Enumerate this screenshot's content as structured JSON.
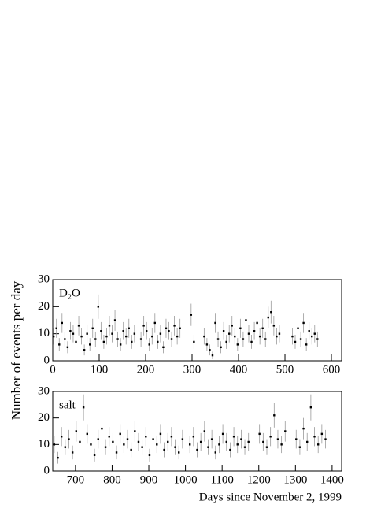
{
  "chart_data": [
    {
      "type": "scatter",
      "annotation": "D₂O",
      "ylabel": "Number of events per day",
      "xlim": [
        0,
        622
      ],
      "ylim": [
        0,
        30
      ],
      "xticks": [
        0,
        100,
        200,
        300,
        400,
        500,
        600
      ],
      "yticks": [
        0,
        10,
        20,
        30
      ],
      "color": "#000000",
      "error_color": "#999999",
      "x": [
        2,
        8,
        14,
        20,
        26,
        32,
        38,
        44,
        50,
        56,
        62,
        68,
        74,
        80,
        86,
        92,
        98,
        104,
        110,
        116,
        122,
        128,
        134,
        140,
        146,
        152,
        158,
        164,
        170,
        176,
        190,
        196,
        202,
        208,
        214,
        220,
        226,
        232,
        238,
        244,
        250,
        256,
        262,
        268,
        274,
        298,
        304,
        326,
        332,
        338,
        344,
        350,
        356,
        362,
        368,
        374,
        380,
        386,
        392,
        398,
        404,
        410,
        416,
        422,
        428,
        434,
        440,
        446,
        452,
        458,
        464,
        470,
        476,
        482,
        488,
        516,
        522,
        528,
        534,
        540,
        546,
        552,
        558,
        564,
        570
      ],
      "values": [
        9,
        12,
        6,
        14,
        8,
        5,
        11,
        10,
        7,
        13,
        9,
        4,
        10,
        6,
        12,
        8,
        20,
        11,
        7,
        9,
        13,
        10,
        15,
        8,
        6,
        11,
        9,
        12,
        7,
        10,
        8,
        13,
        11,
        6,
        9,
        14,
        7,
        10,
        5,
        12,
        11,
        8,
        13,
        9,
        12,
        17,
        7,
        9,
        6,
        4,
        2,
        14,
        8,
        5,
        11,
        7,
        10,
        13,
        9,
        6,
        12,
        8,
        15,
        10,
        7,
        11,
        14,
        9,
        12,
        8,
        16,
        18,
        13,
        9,
        10,
        9,
        7,
        12,
        8,
        14,
        6,
        11,
        9,
        10,
        8
      ],
      "errors": [
        3,
        3.5,
        2.4,
        3.7,
        2.8,
        2.2,
        3.3,
        3.2,
        2.6,
        3.6,
        3,
        2,
        3.2,
        2.4,
        3.5,
        2.8,
        4.5,
        3.3,
        2.6,
        3,
        3.6,
        3.2,
        3.9,
        2.8,
        2.4,
        3.3,
        3,
        3.5,
        2.6,
        3.2,
        2.8,
        3.6,
        3.3,
        2.4,
        3,
        3.7,
        2.6,
        3.2,
        2.2,
        3.5,
        3.3,
        2.8,
        3.6,
        3,
        3.5,
        4.1,
        2.6,
        3,
        2.4,
        2,
        1.4,
        3.7,
        2.8,
        2.2,
        3.3,
        2.6,
        3.2,
        3.6,
        3,
        2.4,
        3.5,
        2.8,
        3.9,
        3.2,
        2.6,
        3.3,
        3.7,
        3,
        3.5,
        2.8,
        4,
        4.2,
        3.6,
        3,
        3.2,
        3,
        2.6,
        3.5,
        2.8,
        3.7,
        2.4,
        3.3,
        3,
        3.2,
        2.8
      ]
    },
    {
      "type": "scatter",
      "annotation": "salt",
      "xlabel": "Days since November 2, 1999",
      "xlim": [
        638,
        1426
      ],
      "ylim": [
        0,
        30
      ],
      "xticks": [
        700,
        800,
        900,
        1000,
        1100,
        1200,
        1300,
        1400
      ],
      "yticks": [
        0,
        10,
        20,
        30
      ],
      "color": "#000000",
      "error_color": "#999999",
      "x": [
        642,
        652,
        662,
        672,
        682,
        692,
        702,
        712,
        722,
        732,
        742,
        752,
        762,
        772,
        782,
        792,
        802,
        812,
        822,
        832,
        842,
        852,
        862,
        872,
        882,
        892,
        902,
        912,
        922,
        932,
        942,
        952,
        962,
        972,
        982,
        992,
        1012,
        1022,
        1032,
        1042,
        1052,
        1062,
        1072,
        1082,
        1092,
        1102,
        1112,
        1122,
        1132,
        1142,
        1152,
        1162,
        1172,
        1202,
        1212,
        1222,
        1232,
        1242,
        1252,
        1262,
        1272,
        1302,
        1312,
        1322,
        1332,
        1342,
        1352,
        1362,
        1372,
        1382
      ],
      "values": [
        10,
        5,
        13,
        9,
        12,
        7,
        15,
        11,
        24,
        14,
        10,
        6,
        12,
        16,
        9,
        13,
        11,
        7,
        14,
        10,
        12,
        8,
        15,
        11,
        9,
        13,
        6,
        12,
        10,
        14,
        8,
        11,
        13,
        9,
        7,
        12,
        10,
        13,
        8,
        11,
        15,
        9,
        12,
        7,
        10,
        14,
        11,
        8,
        13,
        10,
        12,
        9,
        11,
        14,
        11,
        9,
        13,
        21,
        12,
        10,
        15,
        12,
        9,
        16,
        11,
        24,
        13,
        10,
        14,
        12
      ],
      "errors": [
        3.2,
        2.2,
        3.6,
        3,
        3.5,
        2.6,
        3.9,
        3.3,
        4.9,
        3.7,
        3.2,
        2.4,
        3.5,
        4,
        3,
        3.6,
        3.3,
        2.6,
        3.7,
        3.2,
        3.5,
        2.8,
        3.9,
        3.3,
        3,
        3.6,
        2.4,
        3.5,
        3.2,
        3.7,
        2.8,
        3.3,
        3.6,
        3,
        2.6,
        3.5,
        3.2,
        3.6,
        2.8,
        3.3,
        3.9,
        3,
        3.5,
        2.6,
        3.2,
        3.7,
        3.3,
        2.8,
        3.6,
        3.2,
        3.5,
        3,
        3.3,
        3.7,
        3.3,
        3,
        3.6,
        4.6,
        3.5,
        3.2,
        3.9,
        3.5,
        3,
        4,
        3.3,
        4.9,
        3.6,
        3.2,
        3.7,
        3.5
      ]
    }
  ]
}
